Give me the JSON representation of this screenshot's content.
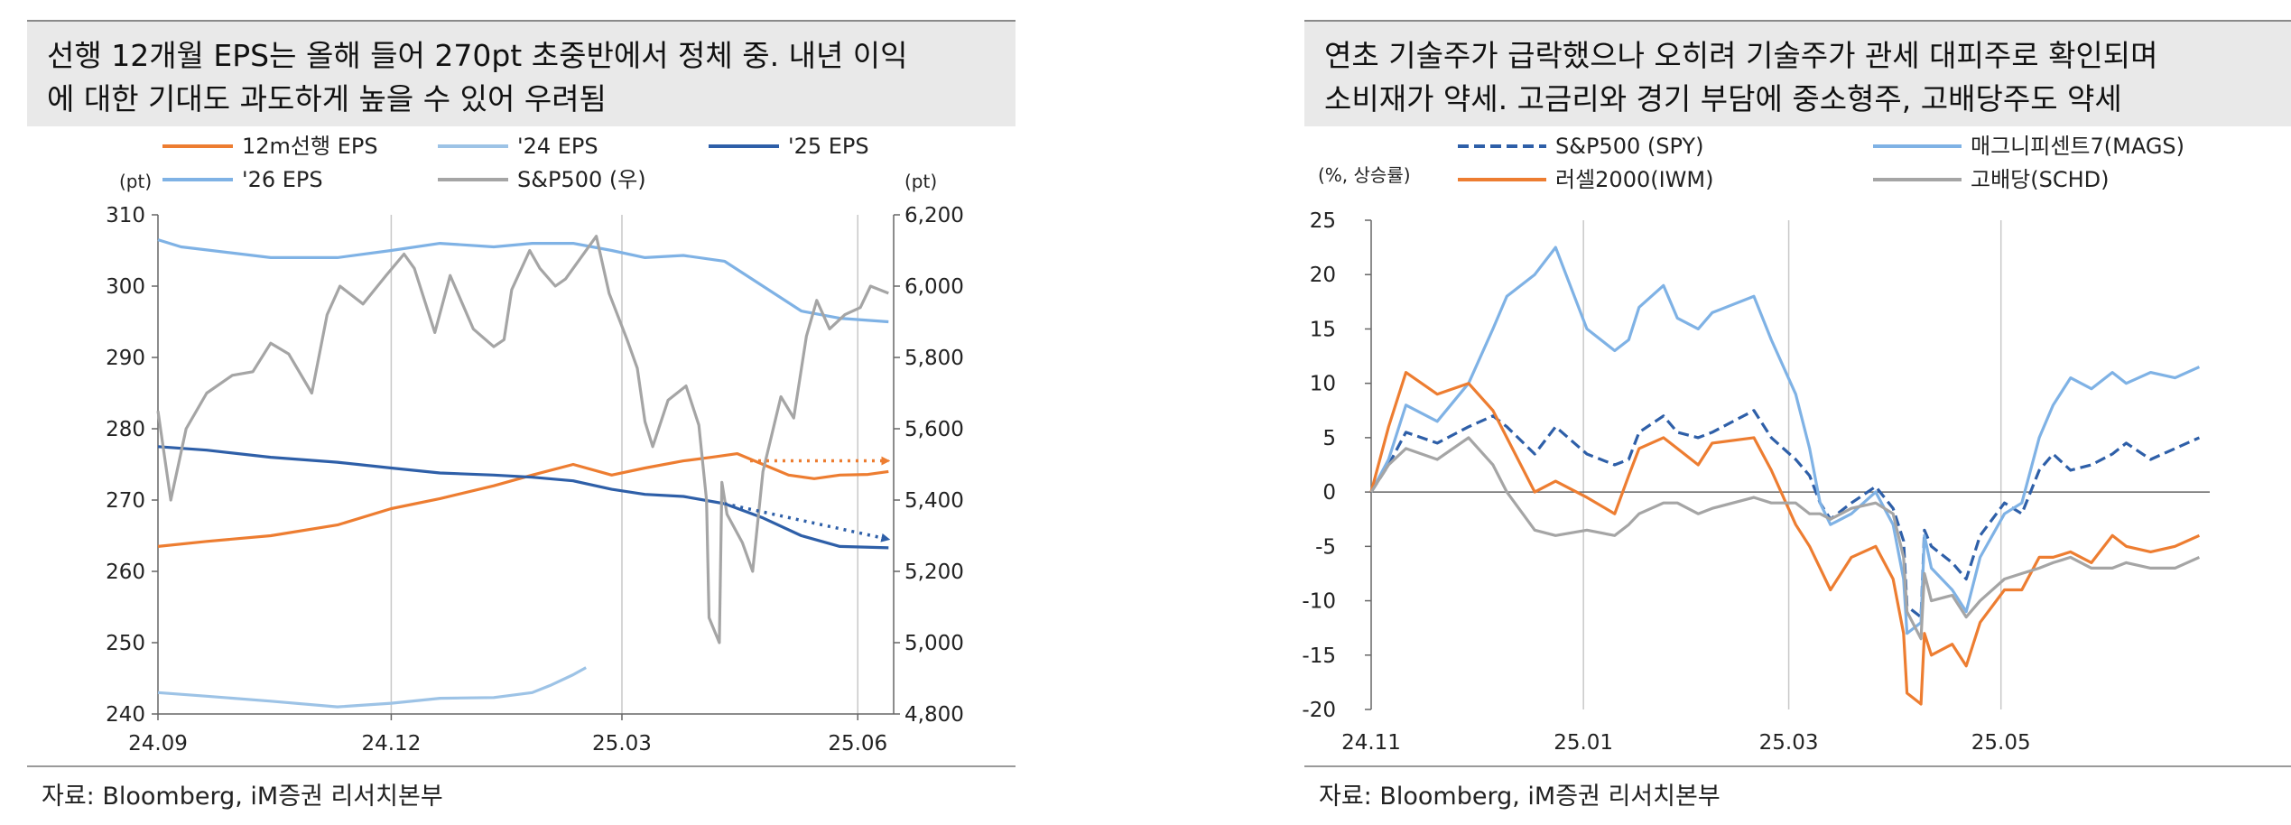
{
  "left": {
    "title_line1": "선행 12개월 EPS는 올해 들어 270pt 초중반에서 정체 중. 내년 이익",
    "title_line2": "에 대한 기대도 과도하게 높을 수 있어 우려됨",
    "source": "자료: Bloomberg, iM증권 리서치본부",
    "colors": {
      "eps12m": "#ED7D31",
      "eps24": "#9DC3E6",
      "eps25": "#2E5FA8",
      "eps26": "#7FB2E5",
      "spx": "#A5A5A5"
    }
  },
  "right": {
    "title_line1": "연초 기술주가 급락했으나 오히려 기술주가 관세 대피주로 확인되며",
    "title_line2": "소비재가 약세. 고금리와 경기 부담에 중소형주, 고배당주도 약세",
    "source": "자료: Bloomberg, iM증권 리서치본부",
    "colors": {
      "spy": "#2E5FA8",
      "mags": "#7FB2E5",
      "iwm": "#ED7D31",
      "schd": "#A5A5A5"
    }
  },
  "chart_data": [
    {
      "type": "line",
      "title": "",
      "legend_placement": "top",
      "grid": "vertical",
      "y_left_unit": "(pt)",
      "y_right_unit": "(pt)",
      "ylim": [
        240,
        310
      ],
      "y2lim": [
        4800,
        6200
      ],
      "y_ticks": [
        "310",
        "300",
        "290",
        "280",
        "270",
        "260",
        "250",
        "240"
      ],
      "y2_ticks": [
        "6,200",
        "6,000",
        "5,800",
        "5,600",
        "5,400",
        "5,200",
        "5,000",
        "4,800"
      ],
      "x_ticks": [
        "24.09",
        "24.12",
        "25.03",
        "25.06"
      ],
      "xlim": [
        "2024-09-01",
        "2025-06-15"
      ],
      "series": [
        {
          "name": "12m선행 EPS",
          "axis": "left",
          "dash": "solid",
          "x": [
            "2024-09-01",
            "2024-09-20",
            "2024-10-15",
            "2024-11-10",
            "2024-12-01",
            "2024-12-20",
            "2025-01-10",
            "2025-01-25",
            "2025-02-10",
            "2025-02-25",
            "2025-03-10",
            "2025-03-25",
            "2025-04-05",
            "2025-04-15",
            "2025-04-25",
            "2025-05-05",
            "2025-05-15",
            "2025-05-25",
            "2025-06-05",
            "2025-06-13"
          ],
          "values": [
            263.5,
            264.2,
            265,
            266.5,
            268.8,
            270.2,
            272,
            273.5,
            275,
            273.5,
            274.5,
            275.5,
            276,
            276.5,
            275,
            273.5,
            273,
            273.5,
            273.6,
            274
          ]
        },
        {
          "name": "'24 EPS",
          "axis": "left",
          "dash": "solid",
          "x": [
            "2024-09-01",
            "2024-09-20",
            "2024-10-15",
            "2024-11-10",
            "2024-12-01",
            "2024-12-20",
            "2025-01-10",
            "2025-01-25",
            "2025-02-01",
            "2025-02-10",
            "2025-02-15"
          ],
          "values": [
            243,
            242.5,
            241.8,
            241,
            241.5,
            242.2,
            242.3,
            243,
            244,
            245.5,
            246.5
          ]
        },
        {
          "name": "'25 EPS",
          "axis": "left",
          "dash": "solid",
          "x": [
            "2024-09-01",
            "2024-09-20",
            "2024-10-15",
            "2024-11-10",
            "2024-12-01",
            "2024-12-20",
            "2025-01-10",
            "2025-01-25",
            "2025-02-10",
            "2025-02-25",
            "2025-03-10",
            "2025-03-25",
            "2025-04-10",
            "2025-04-25",
            "2025-05-10",
            "2025-05-25",
            "2025-06-13"
          ],
          "values": [
            277.5,
            277,
            276,
            275.3,
            274.5,
            273.8,
            273.5,
            273.2,
            272.7,
            271.5,
            270.8,
            270.5,
            269.5,
            267.5,
            265,
            263.5,
            263.3
          ]
        },
        {
          "name": "'26 EPS",
          "axis": "left",
          "dash": "solid",
          "x": [
            "2024-09-01",
            "2024-09-10",
            "2024-10-15",
            "2024-11-10",
            "2024-12-01",
            "2024-12-20",
            "2025-01-10",
            "2025-01-25",
            "2025-02-10",
            "2025-02-25",
            "2025-03-10",
            "2025-03-25",
            "2025-04-10",
            "2025-04-25",
            "2025-05-10",
            "2025-05-25",
            "2025-06-13"
          ],
          "values": [
            306.5,
            305.5,
            304,
            304,
            305,
            306,
            305.5,
            306,
            306,
            305,
            304,
            304.3,
            303.5,
            300,
            296.5,
            295.5,
            295
          ]
        },
        {
          "name": "S&P500 (우)",
          "axis": "right",
          "dash": "solid",
          "x": [
            "2024-09-01",
            "2024-09-06",
            "2024-09-12",
            "2024-09-20",
            "2024-09-30",
            "2024-10-08",
            "2024-10-15",
            "2024-10-22",
            "2024-10-31",
            "2024-11-06",
            "2024-11-11",
            "2024-11-20",
            "2024-11-29",
            "2024-12-06",
            "2024-12-10",
            "2024-12-18",
            "2024-12-24",
            "2025-01-02",
            "2025-01-10",
            "2025-01-14",
            "2025-01-17",
            "2025-01-24",
            "2025-01-28",
            "2025-02-03",
            "2025-02-07",
            "2025-02-19",
            "2025-02-24",
            "2025-03-03",
            "2025-03-07",
            "2025-03-10",
            "2025-03-13",
            "2025-03-19",
            "2025-03-26",
            "2025-03-31",
            "2025-04-03",
            "2025-04-04",
            "2025-04-08",
            "2025-04-09",
            "2025-04-11",
            "2025-04-17",
            "2025-04-21",
            "2025-04-25",
            "2025-05-02",
            "2025-05-07",
            "2025-05-12",
            "2025-05-16",
            "2025-05-21",
            "2025-05-27",
            "2025-06-02",
            "2025-06-06",
            "2025-06-13"
          ],
          "values": [
            5650,
            5400,
            5600,
            5700,
            5750,
            5760,
            5840,
            5810,
            5700,
            5920,
            6000,
            5950,
            6030,
            6090,
            6050,
            5870,
            6030,
            5880,
            5830,
            5850,
            5990,
            6100,
            6050,
            6000,
            6020,
            6140,
            5980,
            5850,
            5770,
            5620,
            5550,
            5680,
            5720,
            5610,
            5400,
            5070,
            5000,
            5450,
            5360,
            5280,
            5200,
            5480,
            5690,
            5630,
            5860,
            5960,
            5880,
            5920,
            5940,
            6000,
            5980
          ]
        }
      ],
      "annotations": [
        {
          "type": "arrow",
          "color": "#ED7D31",
          "dash": "dotted",
          "from": [
            "2025-04-20",
            275.5
          ],
          "to": [
            "2025-06-13",
            275.5
          ]
        },
        {
          "type": "arrow",
          "color": "#2E5FA8",
          "dash": "dotted",
          "from": [
            "2025-04-10",
            269.5
          ],
          "to": [
            "2025-06-13",
            264.5
          ]
        }
      ]
    },
    {
      "type": "line",
      "title": "",
      "legend_placement": "top",
      "grid": "vertical",
      "y_unit": "(%, 상승률)",
      "ylim": [
        -20,
        25
      ],
      "y_ticks": [
        "25",
        "20",
        "15",
        "10",
        "5",
        "0",
        "-5",
        "-10",
        "-15",
        "-20"
      ],
      "x_ticks": [
        "24.11",
        "25.01",
        "25.03",
        "25.05"
      ],
      "xlim": [
        "2024-11-01",
        "2025-06-30"
      ],
      "series": [
        {
          "name": "S&P500 (SPY)",
          "dash": "dashed",
          "x": [
            "2024-11-01",
            "2024-11-06",
            "2024-11-11",
            "2024-11-20",
            "2024-11-29",
            "2024-12-06",
            "2024-12-10",
            "2024-12-18",
            "2024-12-24",
            "2025-01-02",
            "2025-01-10",
            "2025-01-14",
            "2025-01-17",
            "2025-01-24",
            "2025-01-28",
            "2025-02-03",
            "2025-02-07",
            "2025-02-19",
            "2025-02-24",
            "2025-03-03",
            "2025-03-07",
            "2025-03-10",
            "2025-03-13",
            "2025-03-19",
            "2025-03-26",
            "2025-03-31",
            "2025-04-03",
            "2025-04-04",
            "2025-04-08",
            "2025-04-09",
            "2025-04-11",
            "2025-04-17",
            "2025-04-21",
            "2025-04-25",
            "2025-05-02",
            "2025-05-07",
            "2025-05-12",
            "2025-05-16",
            "2025-05-21",
            "2025-05-27",
            "2025-06-02",
            "2025-06-06",
            "2025-06-13",
            "2025-06-20",
            "2025-06-27"
          ],
          "values": [
            0,
            2.5,
            5.5,
            4.5,
            6,
            7,
            6,
            3.5,
            6,
            3.5,
            2.5,
            3,
            5.5,
            7,
            5.5,
            5,
            5.5,
            7.5,
            5,
            3,
            1.5,
            -1,
            -2.5,
            -1,
            0.5,
            -1.5,
            -4.5,
            -10.5,
            -11.5,
            -3.5,
            -5,
            -6.5,
            -8,
            -4,
            -1,
            -2,
            2,
            3.5,
            2,
            2.5,
            3.5,
            4.5,
            3,
            4,
            5
          ]
        },
        {
          "name": "매그니피센트7(MAGS)",
          "dash": "solid",
          "x": [
            "2024-11-01",
            "2024-11-06",
            "2024-11-11",
            "2024-11-20",
            "2024-11-29",
            "2024-12-06",
            "2024-12-10",
            "2024-12-18",
            "2024-12-24",
            "2025-01-02",
            "2025-01-10",
            "2025-01-14",
            "2025-01-17",
            "2025-01-24",
            "2025-01-28",
            "2025-02-03",
            "2025-02-07",
            "2025-02-19",
            "2025-02-24",
            "2025-03-03",
            "2025-03-07",
            "2025-03-10",
            "2025-03-13",
            "2025-03-19",
            "2025-03-26",
            "2025-03-31",
            "2025-04-03",
            "2025-04-04",
            "2025-04-08",
            "2025-04-09",
            "2025-04-11",
            "2025-04-17",
            "2025-04-21",
            "2025-04-25",
            "2025-05-02",
            "2025-05-07",
            "2025-05-12",
            "2025-05-16",
            "2025-05-21",
            "2025-05-27",
            "2025-06-02",
            "2025-06-06",
            "2025-06-13",
            "2025-06-20",
            "2025-06-27"
          ],
          "values": [
            0,
            3,
            8,
            6.5,
            10,
            15,
            18,
            20,
            22.5,
            15,
            13,
            14,
            17,
            19,
            16,
            15,
            16.5,
            18,
            14,
            9,
            4,
            -1,
            -3,
            -2,
            0,
            -3,
            -8,
            -13,
            -12,
            -4,
            -7,
            -9,
            -11,
            -6,
            -2,
            -1,
            5,
            8,
            10.5,
            9.5,
            11,
            10,
            11,
            10.5,
            11.5
          ]
        },
        {
          "name": "러셀2000(IWM)",
          "dash": "solid",
          "x": [
            "2024-11-01",
            "2024-11-06",
            "2024-11-11",
            "2024-11-20",
            "2024-11-29",
            "2024-12-06",
            "2024-12-10",
            "2024-12-18",
            "2024-12-24",
            "2025-01-02",
            "2025-01-10",
            "2025-01-14",
            "2025-01-17",
            "2025-01-24",
            "2025-01-28",
            "2025-02-03",
            "2025-02-07",
            "2025-02-19",
            "2025-02-24",
            "2025-03-03",
            "2025-03-07",
            "2025-03-10",
            "2025-03-13",
            "2025-03-19",
            "2025-03-26",
            "2025-03-31",
            "2025-04-03",
            "2025-04-04",
            "2025-04-08",
            "2025-04-09",
            "2025-04-11",
            "2025-04-17",
            "2025-04-21",
            "2025-04-25",
            "2025-05-02",
            "2025-05-07",
            "2025-05-12",
            "2025-05-16",
            "2025-05-21",
            "2025-05-27",
            "2025-06-02",
            "2025-06-06",
            "2025-06-13",
            "2025-06-20",
            "2025-06-27"
          ],
          "values": [
            0,
            6,
            11,
            9,
            10,
            7.5,
            5,
            0,
            1,
            -0.5,
            -2,
            1.5,
            4,
            5,
            4,
            2.5,
            4.5,
            5,
            2,
            -3,
            -5,
            -7,
            -9,
            -6,
            -5,
            -8,
            -13,
            -18.5,
            -19.5,
            -13,
            -15,
            -14,
            -16,
            -12,
            -9,
            -9,
            -6,
            -6,
            -5.5,
            -6.5,
            -4,
            -5,
            -5.5,
            -5,
            -4
          ]
        },
        {
          "name": "고배당(SCHD)",
          "dash": "solid",
          "x": [
            "2024-11-01",
            "2024-11-06",
            "2024-11-11",
            "2024-11-20",
            "2024-11-29",
            "2024-12-06",
            "2024-12-10",
            "2024-12-18",
            "2024-12-24",
            "2025-01-02",
            "2025-01-10",
            "2025-01-14",
            "2025-01-17",
            "2025-01-24",
            "2025-01-28",
            "2025-02-03",
            "2025-02-07",
            "2025-02-19",
            "2025-02-24",
            "2025-03-03",
            "2025-03-07",
            "2025-03-10",
            "2025-03-13",
            "2025-03-19",
            "2025-03-26",
            "2025-03-31",
            "2025-04-03",
            "2025-04-04",
            "2025-04-08",
            "2025-04-09",
            "2025-04-11",
            "2025-04-17",
            "2025-04-21",
            "2025-04-25",
            "2025-05-02",
            "2025-05-07",
            "2025-05-12",
            "2025-05-16",
            "2025-05-21",
            "2025-05-27",
            "2025-06-02",
            "2025-06-06",
            "2025-06-13",
            "2025-06-20",
            "2025-06-27"
          ],
          "values": [
            0,
            2.5,
            4,
            3,
            5,
            2.5,
            0,
            -3.5,
            -4,
            -3.5,
            -4,
            -3,
            -2,
            -1,
            -1,
            -2,
            -1.5,
            -0.5,
            -1,
            -1,
            -2,
            -2,
            -2.5,
            -1.5,
            -1,
            -2,
            -6,
            -11,
            -13.5,
            -7.5,
            -10,
            -9.5,
            -11.5,
            -10,
            -8,
            -7.5,
            -7,
            -6.5,
            -6,
            -7,
            -7,
            -6.5,
            -7,
            -7,
            -6
          ]
        }
      ]
    }
  ]
}
